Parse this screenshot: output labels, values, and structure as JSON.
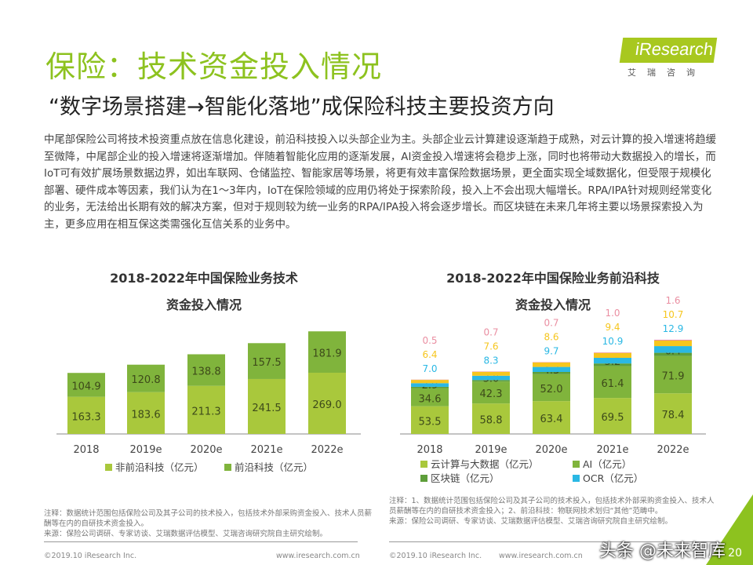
{
  "header": {
    "title": "保险：技术资金投入情况",
    "subtitle": "“数字场景搭建→智能化落地”成保险科技主要投资方向"
  },
  "logo": {
    "text": "iResearch",
    "cn": "艾瑞咨询"
  },
  "body_text": "中尾部保险公司将技术投资重点放在信息化建设，前沿科技投入以头部企业为主。头部企业云计算建设逐渐趋于成熟，对云计算的投入增速将趋缓至微降，中尾部企业的投入增速将逐渐增加。伴随着智能化应用的逐渐发展，AI资金投入增速将会稳步上涨，同时也将带动大数据投入的增长，而IoT可有效扩展场景数据边界，如出车联网、仓储监控、智能家居等场景，将更有效丰富保险数据场景，更全面实现全域数据化，但受限于规模化部署、硬件成本等因素，我们认为在1～3年内，IoT在保险领域的应用仍将处于探索阶段，投入上不会出现大幅增长。RPA/IPA针对规则经常变化的业务，无法给出长期有效的解决方案，但对于规则较为统一业务的RPA/IPA投入将会逐步增长。而区块链在未来几年将主要以场景探索投入为主，更多应用在相互保这类需强化互信关系的业务中。",
  "chart_data": [
    {
      "type": "bar",
      "stacked": true,
      "title": "2018-2022年中国保险业务技术资金投入情况",
      "title_line1": "2018-2022年中国保险业务技术",
      "title_line2": "资金投入情况",
      "categories": [
        "2018",
        "2019e",
        "2020e",
        "2021e",
        "2022e"
      ],
      "series": [
        {
          "name": "非前沿科技（亿元）",
          "values": [
            163.3,
            183.6,
            211.3,
            241.5,
            269.0
          ],
          "color": "#a9c83c"
        },
        {
          "name": "前沿科技（亿元）",
          "values": [
            104.9,
            120.8,
            138.8,
            157.5,
            181.9
          ],
          "color": "#80b43c"
        }
      ],
      "legend": "bottom"
    },
    {
      "type": "bar",
      "stacked": true,
      "title": "2018-2022年中国保险业务前沿科技资金投入情况",
      "title_line1": "2018-2022年中国保险业务前沿科技",
      "title_line2": "资金投入情况",
      "categories": [
        "2018",
        "2019e",
        "2020e",
        "2021e",
        "2022e"
      ],
      "series": [
        {
          "name": "云计算与大数据（亿元）",
          "values": [
            53.5,
            58.8,
            63.4,
            69.5,
            78.4
          ],
          "color": "#a9c83c"
        },
        {
          "name": "AI（亿元）",
          "values": [
            34.6,
            42.3,
            52.0,
            61.4,
            71.9
          ],
          "color": "#80b43c"
        },
        {
          "name": "区块链（亿元）",
          "values": [
            2.9,
            3.0,
            4.3,
            5.2,
            6.4
          ],
          "color": "#5e9e3a"
        },
        {
          "name": "OCR（亿元）",
          "values": [
            7.0,
            8.3,
            9.7,
            10.9,
            12.9
          ],
          "color": "#2ab8e4"
        },
        {
          "values": [
            6.4,
            7.6,
            8.6,
            9.4,
            10.7
          ],
          "color": "#f6c61e"
        },
        {
          "values": [
            0.5,
            0.7,
            0.7,
            1.0,
            1.6
          ],
          "color": "#ea8fa2"
        }
      ],
      "legend": "bottom"
    }
  ],
  "notes": {
    "left": [
      "注释：数据统计范围包括保险公司及其子公司的技术投入，包括技术外部采购资金投入、技术人员薪酬等在内的自研技术资金投入。",
      "来源：保险公司调研、专家访谈、艾瑞数据评估模型、艾瑞咨询研究院自主研究绘制。"
    ],
    "right": [
      "注释：1、数据统计范围包括保险公司及其子公司的技术投入，包括技术外部采购资金投入、技术人员薪酬等在内的自研技术资金投入；2、前沿科技：物联网技术划归“其他”范畴中。",
      "来源：保险公司调研、专家访谈、艾瑞数据评估模型、艾瑞咨询研究院自主研究绘制。"
    ]
  },
  "footer": {
    "copyright": "©2019.10 iResearch Inc.",
    "url": "www.iresearch.com.cn",
    "page": "20",
    "watermark": "头条 @未来智库"
  }
}
